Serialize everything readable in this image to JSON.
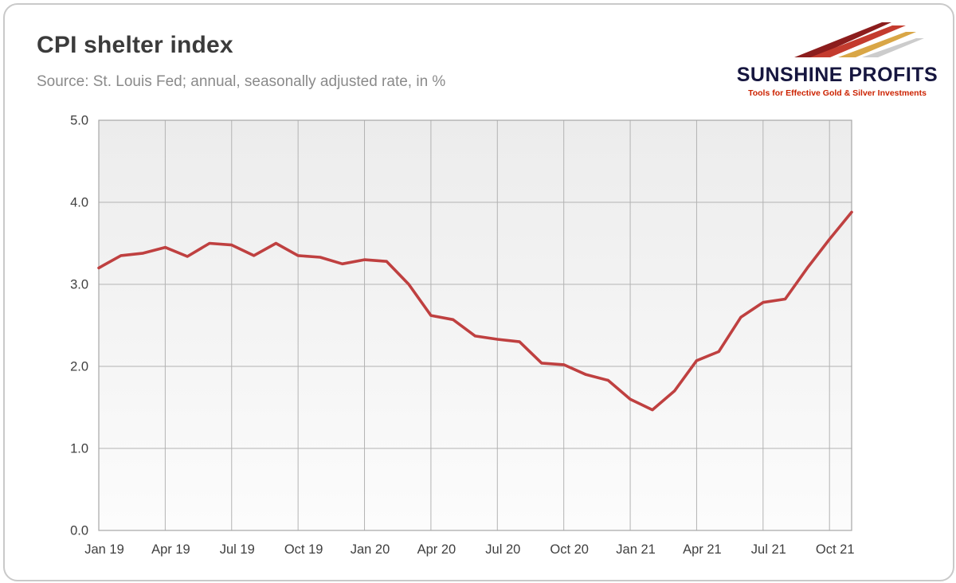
{
  "header": {
    "title": "CPI shelter index",
    "subtitle": "Source: St. Louis Fed; annual, seasonally adjusted rate, in %"
  },
  "logo": {
    "name": "SUNSHINE PROFITS",
    "tagline": "Tools for Effective Gold & Silver Investments",
    "colors": {
      "maroon": "#8c1d1d",
      "red": "#c43b2e",
      "gold": "#d9a646",
      "gray": "#cccccc",
      "text": "#16163f",
      "tagline": "#cc2200"
    }
  },
  "chart_data": {
    "type": "line",
    "title": "CPI shelter index",
    "subtitle": "Source: St. Louis Fed; annual, seasonally adjusted rate, in %",
    "x": [
      "Jan 19",
      "Feb 19",
      "Mar 19",
      "Apr 19",
      "May 19",
      "Jun 19",
      "Jul 19",
      "Aug 19",
      "Sep 19",
      "Oct 19",
      "Nov 19",
      "Dec 19",
      "Jan 20",
      "Feb 20",
      "Mar 20",
      "Apr 20",
      "May 20",
      "Jun 20",
      "Jul 20",
      "Aug 20",
      "Sep 20",
      "Oct 20",
      "Nov 20",
      "Dec 20",
      "Jan 21",
      "Feb 21",
      "Mar 21",
      "Apr 21",
      "May 21",
      "Jun 21",
      "Jul 21",
      "Aug 21",
      "Sep 21",
      "Oct 21",
      "Nov 21"
    ],
    "values": [
      3.2,
      3.35,
      3.38,
      3.45,
      3.34,
      3.5,
      3.48,
      3.35,
      3.5,
      3.35,
      3.33,
      3.25,
      3.3,
      3.28,
      3.0,
      2.62,
      2.57,
      2.37,
      2.33,
      2.3,
      2.04,
      2.02,
      1.9,
      1.83,
      1.6,
      1.47,
      1.7,
      2.07,
      2.18,
      2.6,
      2.78,
      2.82,
      3.2,
      3.55,
      3.88
    ],
    "x_tick_labels": [
      "Jan 19",
      "Apr 19",
      "Jul 19",
      "Oct 19",
      "Jan 20",
      "Apr 20",
      "Jul 20",
      "Oct 20",
      "Jan 21",
      "Apr 21",
      "Jul 21",
      "Oct 21"
    ],
    "x_tick_every": 3,
    "y_tick_labels": [
      "0.0",
      "1.0",
      "2.0",
      "3.0",
      "4.0",
      "5.0"
    ],
    "ylim": [
      0,
      5
    ],
    "grid": true,
    "legend": "none",
    "line_color": "#bf4040",
    "grid_color": "#b3b3b3",
    "axis_label_color": "#404040",
    "plot_bg_top": "#ececec",
    "plot_bg_bottom": "#fcfcfc"
  }
}
